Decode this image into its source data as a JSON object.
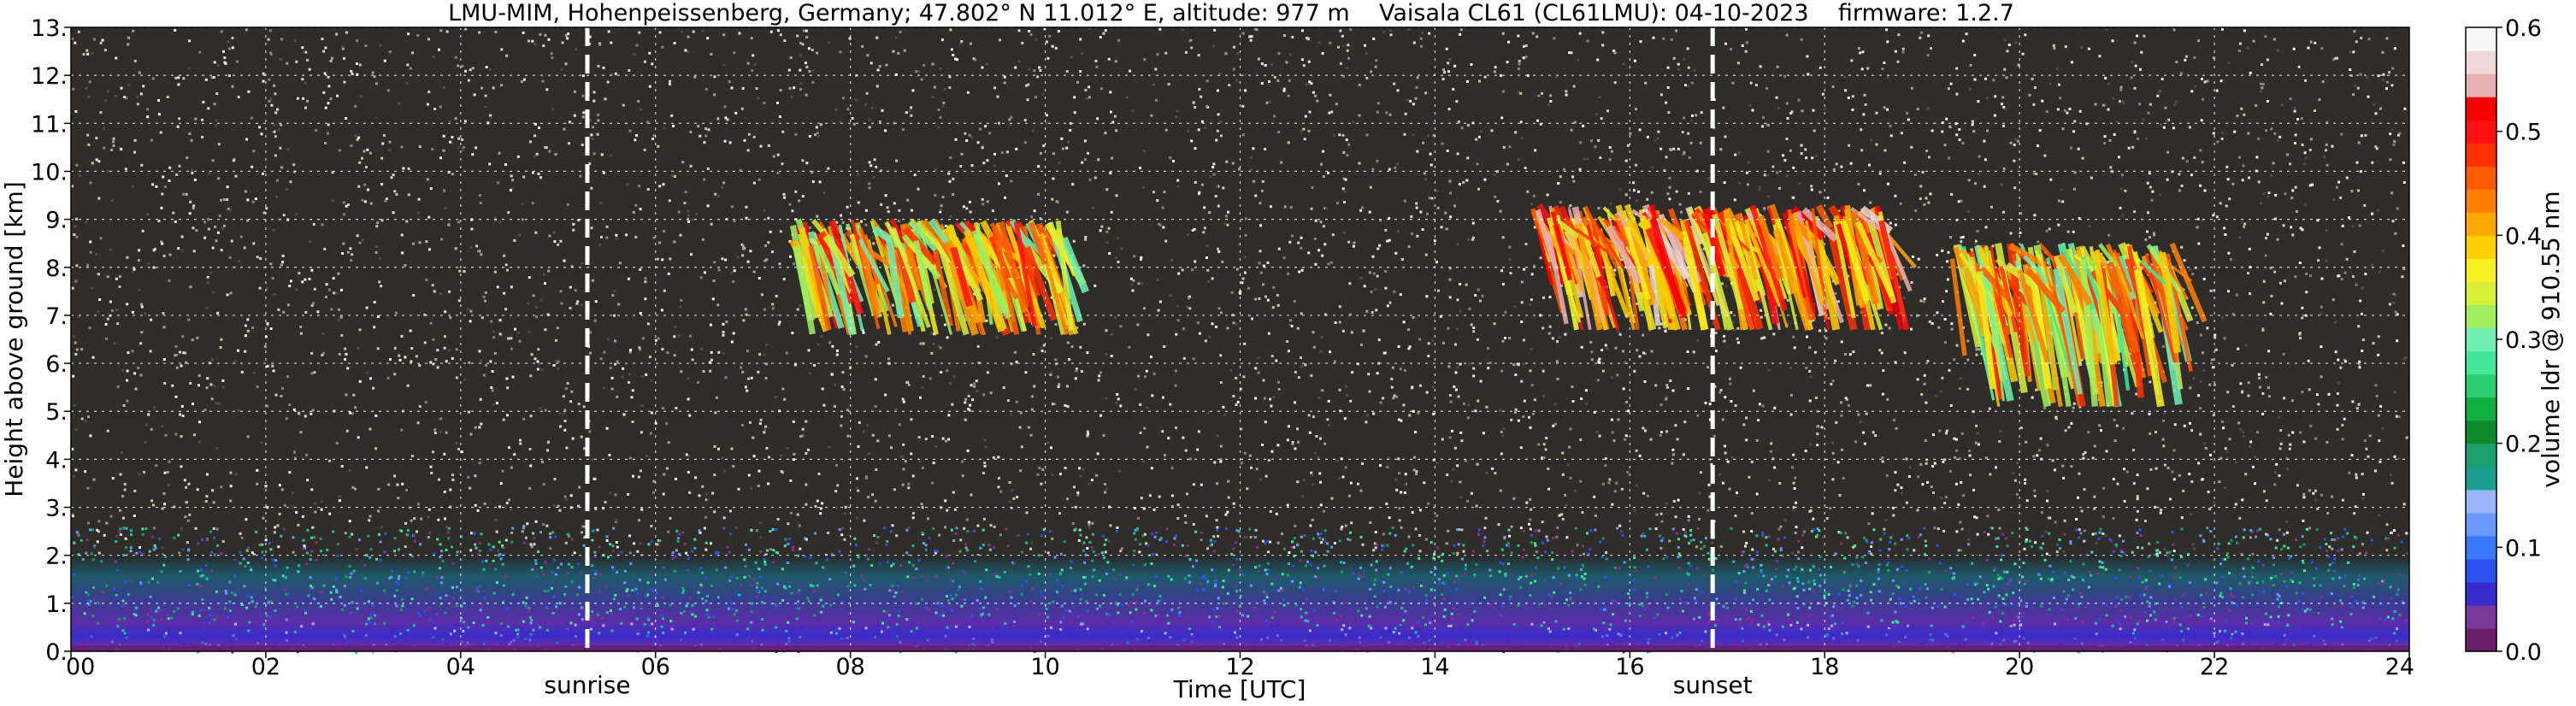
{
  "chart_data": {
    "type": "heatmap",
    "title": "LMU-MIM, Hohenpeissenberg, Germany; 47.802° N 11.012° E, altitude: 977 m    Vaisala CL61 (CL61LMU): 04-10-2023    firmware: 1.2.7",
    "xlabel": "Time [UTC]",
    "ylabel": "Height above ground [km]",
    "x_ticks": [
      "00",
      "02",
      "04",
      "06",
      "08",
      "10",
      "12",
      "14",
      "16",
      "18",
      "20",
      "22",
      "24"
    ],
    "y_ticks": [
      "0.",
      "1.",
      "2.",
      "3.",
      "4.",
      "5.",
      "6.",
      "7.",
      "8.",
      "9.",
      "10.",
      "11.",
      "12.",
      "13."
    ],
    "xlim": [
      0,
      24
    ],
    "ylim": [
      0,
      13
    ],
    "grid": true,
    "colorbar": {
      "label": "volume ldr @ 910.55 nm",
      "range": [
        0.0,
        0.6
      ],
      "ticks": [
        "0.0",
        "0.1",
        "0.2",
        "0.3",
        "0.4",
        "0.5",
        "0.6"
      ],
      "colors": [
        "#6a1f6a",
        "#7a3a9a",
        "#3a2ccc",
        "#2a50ee",
        "#3a78ff",
        "#6a98ff",
        "#9ab6ff",
        "#1a9e8e",
        "#1aa06a",
        "#0a8a2a",
        "#10b040",
        "#2ad070",
        "#40e898",
        "#70f0b0",
        "#a0f060",
        "#d8f03a",
        "#f8f020",
        "#ffd000",
        "#ffa800",
        "#ff8000",
        "#ff5a00",
        "#ff3000",
        "#ff1010",
        "#f80000",
        "#e8b0b0",
        "#f0d8d8",
        "#f8f8f8"
      ]
    },
    "annotations": [
      {
        "text": "sunrise",
        "x": 5.3
      },
      {
        "text": "sunset",
        "x": 16.85
      }
    ],
    "cloud_layers": [
      {
        "x_start": 7.4,
        "x_end": 10.2,
        "y_low": 6.6,
        "y_high": 9.0,
        "ldr": 0.4
      },
      {
        "x_start": 15.0,
        "x_end": 18.6,
        "y_low": 6.7,
        "y_high": 9.3,
        "ldr": 0.45
      },
      {
        "x_start": 19.3,
        "x_end": 21.6,
        "y_low": 5.1,
        "y_high": 8.5,
        "ldr": 0.38
      }
    ],
    "boundary_layer": {
      "top_km_early": 2.0,
      "ldr_low": 0.02,
      "ldr_mid": 0.08
    }
  }
}
